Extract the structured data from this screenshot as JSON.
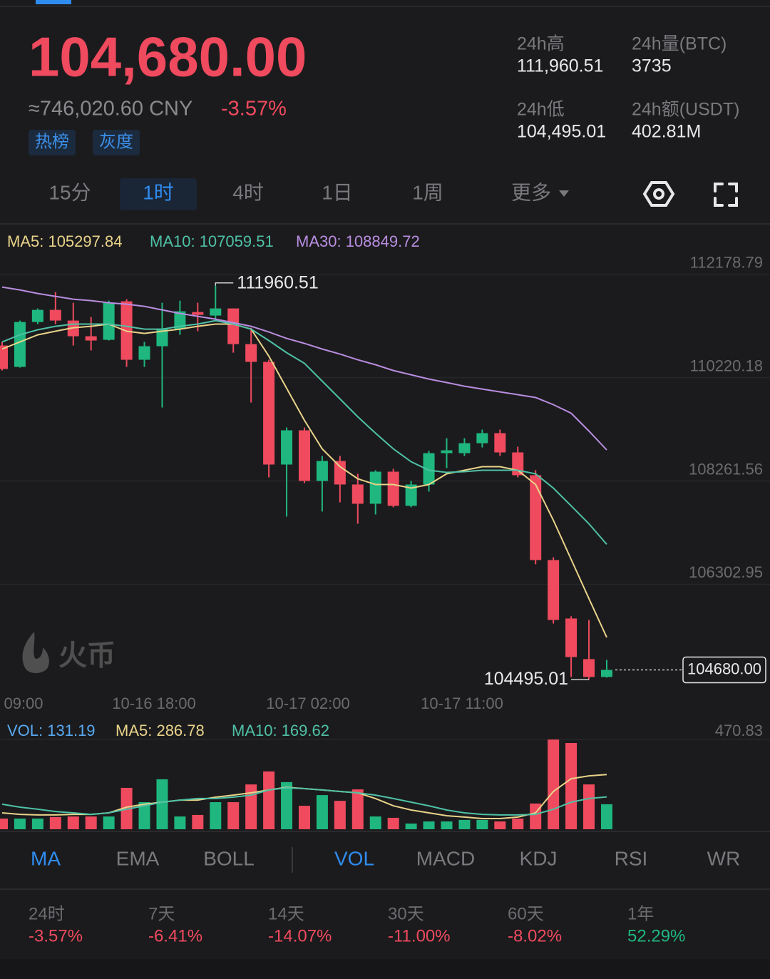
{
  "header": {
    "price": "104,680.00",
    "cny": "≈746,020.60 CNY",
    "change": "-3.57%",
    "tags": [
      "热榜",
      "灰度"
    ]
  },
  "stats": [
    {
      "label": "24h高",
      "value": "111,960.51"
    },
    {
      "label": "24h量(BTC)",
      "value": "3735"
    },
    {
      "label": "24h低",
      "value": "104,495.01"
    },
    {
      "label": "24h额(USDT)",
      "value": "402.81M"
    }
  ],
  "timeframes": [
    {
      "label": "15分",
      "selected": false
    },
    {
      "label": "1时",
      "selected": true
    },
    {
      "label": "4时",
      "selected": false
    },
    {
      "label": "1日",
      "selected": false
    },
    {
      "label": "1周",
      "selected": false
    },
    {
      "label": "更多",
      "selected": false
    }
  ],
  "chart_data": [
    {
      "type": "candlestick",
      "up_color": "#1fb77f",
      "down_color": "#ef4a5e",
      "ylim": [
        104200,
        113120
      ],
      "yticks": [
        112178.79,
        110220.18,
        108261.56,
        106302.95
      ],
      "grid": true,
      "time_labels": [
        "09:00",
        "10-16 18:00",
        "10-17 02:00",
        "10-17 11:00"
      ],
      "open": [
        110828,
        110423,
        111274,
        111504,
        111301,
        111004,
        110936,
        111666,
        110558,
        110815,
        111139,
        111463,
        111396,
        111531,
        110855,
        110518,
        108572,
        109221,
        108261,
        108640,
        108194,
        107829,
        108437,
        107789,
        108194,
        108788,
        108788,
        108977,
        109167,
        108802,
        108370,
        106762,
        105654,
        104884,
        104546
      ],
      "high": [
        110896,
        111301,
        111531,
        111841,
        111639,
        111369,
        111679,
        111706,
        110896,
        111639,
        111679,
        111639,
        111960.51,
        111531,
        111166,
        110558,
        109275,
        109275,
        108734,
        108734,
        108397,
        108464,
        108491,
        108261,
        108829,
        109072,
        109072,
        109234,
        109234,
        108910,
        108464,
        106816,
        105695,
        105627,
        104870
      ],
      "low": [
        110355,
        110410,
        111234,
        111234,
        110828,
        110734,
        110923,
        110423,
        110423,
        109653,
        111031,
        111099,
        111301,
        110693,
        109748,
        108329,
        107586,
        108221,
        107681,
        107856,
        107451,
        107626,
        107762,
        107762,
        108059,
        108505,
        108734,
        108896,
        108734,
        108329,
        106681,
        105559,
        104546,
        104495.01,
        104533
      ],
      "close": [
        110383,
        111274,
        111504,
        111301,
        111004,
        110923,
        111639,
        110558,
        110815,
        111139,
        111477,
        111409,
        111531,
        110855,
        110518,
        108572,
        109221,
        108261,
        108640,
        108194,
        107829,
        108437,
        107789,
        108194,
        108788,
        108842,
        108977,
        109167,
        108802,
        108370,
        106762,
        105627,
        104924,
        104546,
        104680
      ],
      "series": [
        {
          "name": "MA5: 105297.84",
          "color": "#e9d38a",
          "values": [
            110761,
            110896,
            111031,
            111099,
            111166,
            111193,
            111234,
            111099,
            111058,
            111099,
            111139,
            111193,
            111234,
            111234,
            111139,
            110626,
            110018,
            109410,
            108869,
            108532,
            108302,
            108194,
            108194,
            108126,
            108194,
            108397,
            108464,
            108532,
            108532,
            108464,
            108194,
            107518,
            106775,
            106032,
            105297.84
          ]
        },
        {
          "name": "MA10: 107059.51",
          "color": "#4fc1a6",
          "values": [
            110896,
            111031,
            111126,
            111193,
            111234,
            111234,
            111234,
            111193,
            111139,
            111139,
            111193,
            111234,
            111301,
            111234,
            111139,
            110923,
            110693,
            110491,
            110153,
            109815,
            109477,
            109167,
            108869,
            108626,
            108464,
            108424,
            108437,
            108464,
            108464,
            108464,
            108397,
            108126,
            107789,
            107451,
            107059.51
          ]
        },
        {
          "name": "MA30: 108849.72",
          "color": "#b98de0",
          "values": [
            111936,
            111882,
            111815,
            111760,
            111706,
            111679,
            111639,
            111612,
            111571,
            111504,
            111436,
            111382,
            111328,
            111261,
            111193,
            111085,
            110963,
            110869,
            110761,
            110666,
            110558,
            110464,
            110355,
            110274,
            110193,
            110126,
            110058,
            110004,
            109950,
            109896,
            109842,
            109707,
            109545,
            109207,
            108849.72
          ]
        }
      ],
      "high_label": "111960.51",
      "low_label": "104495.01",
      "last_price_label": "104680.00",
      "watermark": "火币"
    },
    {
      "type": "bar",
      "name": "VOL: 131.19",
      "color": "#5aa9f0",
      "ylim": [
        0,
        470.83
      ],
      "yticks": [
        470.83
      ],
      "values": [
        56,
        56,
        56,
        64,
        67,
        67,
        67,
        217,
        142,
        262,
        67,
        75,
        142,
        142,
        235,
        303,
        247,
        123,
        179,
        149,
        209,
        67,
        60,
        30,
        41,
        41,
        49,
        49,
        41,
        56,
        135,
        470,
        452,
        235,
        131.19
      ],
      "series": [
        {
          "name": "MA5: 286.78",
          "color": "#e9d38a",
          "values": [
            86,
            78,
            75,
            75,
            78,
            78,
            86,
            116,
            131,
            142,
            153,
            153,
            168,
            179,
            191,
            206,
            220,
            213,
            206,
            198,
            191,
            161,
            123,
            101,
            86,
            71,
            64,
            56,
            56,
            64,
            86,
            198,
            265,
            280,
            286.78
          ]
        },
        {
          "name": "MA10: 169.62",
          "color": "#4fc1a6",
          "values": [
            131,
            116,
            105,
            93,
            86,
            78,
            86,
            105,
            123,
            142,
            153,
            161,
            161,
            168,
            179,
            206,
            217,
            213,
            206,
            198,
            191,
            179,
            161,
            142,
            123,
            101,
            86,
            78,
            75,
            75,
            78,
            105,
            142,
            161,
            169.62
          ]
        }
      ]
    }
  ],
  "indicator_tabs": [
    {
      "label": "MA",
      "selected": true
    },
    {
      "label": "EMA",
      "selected": false
    },
    {
      "label": "BOLL",
      "selected": false
    },
    {
      "label": "VOL",
      "selected": true
    },
    {
      "label": "MACD",
      "selected": false
    },
    {
      "label": "KDJ",
      "selected": false
    },
    {
      "label": "RSI",
      "selected": false
    },
    {
      "label": "WR",
      "selected": false
    }
  ],
  "performance": [
    {
      "period": "24时",
      "change": "-3.57%",
      "color": "#ef4a5e"
    },
    {
      "period": "7天",
      "change": "-6.41%",
      "color": "#ef4a5e"
    },
    {
      "period": "14天",
      "change": "-14.07%",
      "color": "#ef4a5e"
    },
    {
      "period": "30天",
      "change": "-11.00%",
      "color": "#ef4a5e"
    },
    {
      "period": "60天",
      "change": "-8.02%",
      "color": "#ef4a5e"
    },
    {
      "period": "1年",
      "change": "52.29%",
      "color": "#1fb77f"
    }
  ]
}
